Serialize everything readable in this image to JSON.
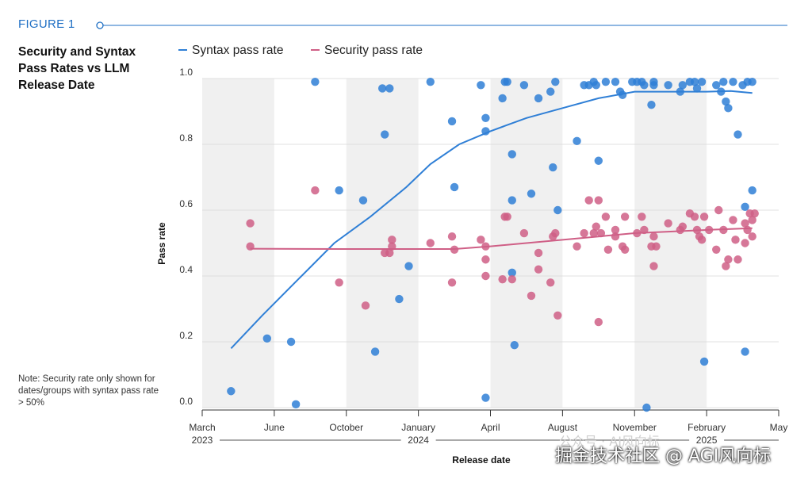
{
  "header": {
    "figure_label": "FIGURE 1"
  },
  "note": "Note: Security rate only shown for dates/groups with syntax pass rate > 50%",
  "watermark": {
    "text": "掘金技术社区 @ AGI风向标",
    "faint_text": "公众号 · AI风向标"
  },
  "colors": {
    "syntax": "#2f7fd6",
    "security": "#cf5f86",
    "accent": "#1f6fc4"
  },
  "chart_data": {
    "type": "scatter",
    "title": "Security and Syntax Pass Rates vs LLM Release Date",
    "xlabel": "Release date",
    "ylabel": "Pass rate",
    "ylim": [
      0,
      1
    ],
    "xlim": [
      0,
      24
    ],
    "x_unit": "months since March 1, 2023",
    "yticks": [
      "0.0",
      "0.2",
      "0.4",
      "0.6",
      "0.8",
      "1.0"
    ],
    "xticks": [
      {
        "x": 0,
        "label": "March",
        "year": "2023"
      },
      {
        "x": 3,
        "label": "June",
        "year": ""
      },
      {
        "x": 6,
        "label": "October",
        "year": ""
      },
      {
        "x": 9,
        "label": "January",
        "year": "2024"
      },
      {
        "x": 12,
        "label": "April",
        "year": ""
      },
      {
        "x": 15,
        "label": "August",
        "year": ""
      },
      {
        "x": 18,
        "label": "November",
        "year": ""
      },
      {
        "x": 21,
        "label": "February",
        "year": "2025"
      },
      {
        "x": 24,
        "label": "May",
        "year": ""
      }
    ],
    "shaded_bands": [
      [
        0,
        3
      ],
      [
        6,
        9
      ],
      [
        12,
        15
      ],
      [
        18,
        21
      ]
    ],
    "series": [
      {
        "name": "Syntax pass rate",
        "color": "#2f7fd6",
        "points": [
          [
            1.2,
            0.05
          ],
          [
            2.7,
            0.21
          ],
          [
            3.7,
            0.2
          ],
          [
            3.9,
            0.01
          ],
          [
            4.7,
            0.99
          ],
          [
            5.7,
            0.66
          ],
          [
            6.7,
            0.63
          ],
          [
            7.2,
            0.17
          ],
          [
            7.5,
            0.97
          ],
          [
            7.8,
            0.97
          ],
          [
            7.6,
            0.83
          ],
          [
            8.2,
            0.33
          ],
          [
            8.6,
            0.43
          ],
          [
            9.5,
            0.99
          ],
          [
            10.4,
            0.87
          ],
          [
            10.5,
            0.67
          ],
          [
            11.6,
            0.98
          ],
          [
            11.8,
            0.88
          ],
          [
            11.8,
            0.84
          ],
          [
            11.8,
            0.03
          ],
          [
            12.5,
            0.94
          ],
          [
            12.6,
            0.99
          ],
          [
            12.7,
            0.99
          ],
          [
            12.9,
            0.77
          ],
          [
            12.9,
            0.63
          ],
          [
            12.9,
            0.41
          ],
          [
            13.0,
            0.19
          ],
          [
            13.4,
            0.98
          ],
          [
            13.7,
            0.65
          ],
          [
            14.0,
            0.94
          ],
          [
            14.5,
            0.96
          ],
          [
            14.6,
            0.73
          ],
          [
            14.7,
            0.99
          ],
          [
            14.8,
            0.6
          ],
          [
            15.6,
            0.81
          ],
          [
            15.9,
            0.98
          ],
          [
            16.1,
            0.98
          ],
          [
            16.3,
            0.99
          ],
          [
            16.4,
            0.98
          ],
          [
            16.5,
            0.75
          ],
          [
            16.8,
            0.99
          ],
          [
            17.2,
            0.99
          ],
          [
            17.4,
            0.96
          ],
          [
            17.5,
            0.95
          ],
          [
            17.9,
            0.99
          ],
          [
            18.1,
            0.99
          ],
          [
            18.3,
            0.99
          ],
          [
            18.4,
            0.98
          ],
          [
            18.5,
            0.0
          ],
          [
            18.7,
            0.92
          ],
          [
            18.8,
            0.98
          ],
          [
            18.8,
            0.99
          ],
          [
            19.4,
            0.98
          ],
          [
            19.9,
            0.96
          ],
          [
            20.0,
            0.98
          ],
          [
            20.3,
            0.99
          ],
          [
            20.5,
            0.99
          ],
          [
            20.6,
            0.97
          ],
          [
            20.8,
            0.99
          ],
          [
            20.9,
            0.14
          ],
          [
            21.4,
            0.98
          ],
          [
            21.6,
            0.96
          ],
          [
            21.7,
            0.99
          ],
          [
            21.8,
            0.93
          ],
          [
            21.9,
            0.91
          ],
          [
            22.1,
            0.99
          ],
          [
            22.3,
            0.83
          ],
          [
            22.5,
            0.98
          ],
          [
            22.6,
            0.61
          ],
          [
            22.6,
            0.17
          ],
          [
            22.7,
            0.99
          ],
          [
            22.9,
            0.99
          ],
          [
            22.9,
            0.66
          ]
        ],
        "trend": [
          [
            1.2,
            0.18
          ],
          [
            2.5,
            0.28
          ],
          [
            4,
            0.39
          ],
          [
            5.5,
            0.5
          ],
          [
            7,
            0.58
          ],
          [
            8.5,
            0.67
          ],
          [
            9.5,
            0.74
          ],
          [
            10.7,
            0.8
          ],
          [
            12,
            0.84
          ],
          [
            13.5,
            0.88
          ],
          [
            15,
            0.91
          ],
          [
            16.5,
            0.94
          ],
          [
            18,
            0.96
          ],
          [
            19.5,
            0.96
          ],
          [
            21,
            0.96
          ],
          [
            22,
            0.962
          ],
          [
            22.9,
            0.956
          ]
        ]
      },
      {
        "name": "Security pass rate",
        "color": "#cf5f86",
        "points": [
          [
            2.0,
            0.56
          ],
          [
            2.0,
            0.49
          ],
          [
            4.7,
            0.66
          ],
          [
            5.7,
            0.38
          ],
          [
            6.8,
            0.31
          ],
          [
            7.6,
            0.47
          ],
          [
            7.8,
            0.47
          ],
          [
            7.9,
            0.49
          ],
          [
            7.9,
            0.51
          ],
          [
            9.5,
            0.5
          ],
          [
            10.4,
            0.52
          ],
          [
            10.4,
            0.38
          ],
          [
            10.5,
            0.48
          ],
          [
            11.6,
            0.51
          ],
          [
            11.8,
            0.49
          ],
          [
            11.8,
            0.45
          ],
          [
            11.8,
            0.4
          ],
          [
            12.5,
            0.39
          ],
          [
            12.6,
            0.58
          ],
          [
            12.7,
            0.58
          ],
          [
            12.9,
            0.39
          ],
          [
            13.4,
            0.53
          ],
          [
            13.7,
            0.34
          ],
          [
            14.0,
            0.47
          ],
          [
            14.0,
            0.42
          ],
          [
            14.5,
            0.38
          ],
          [
            14.6,
            0.52
          ],
          [
            14.7,
            0.53
          ],
          [
            14.8,
            0.28
          ],
          [
            15.6,
            0.49
          ],
          [
            15.9,
            0.53
          ],
          [
            16.1,
            0.63
          ],
          [
            16.3,
            0.53
          ],
          [
            16.4,
            0.55
          ],
          [
            16.5,
            0.63
          ],
          [
            16.5,
            0.26
          ],
          [
            16.6,
            0.53
          ],
          [
            16.8,
            0.58
          ],
          [
            16.9,
            0.48
          ],
          [
            17.2,
            0.52
          ],
          [
            17.2,
            0.54
          ],
          [
            17.5,
            0.49
          ],
          [
            17.6,
            0.58
          ],
          [
            17.6,
            0.48
          ],
          [
            18.1,
            0.53
          ],
          [
            18.3,
            0.58
          ],
          [
            18.4,
            0.54
          ],
          [
            18.7,
            0.49
          ],
          [
            18.8,
            0.52
          ],
          [
            18.8,
            0.43
          ],
          [
            18.9,
            0.49
          ],
          [
            19.4,
            0.56
          ],
          [
            19.9,
            0.54
          ],
          [
            20.0,
            0.55
          ],
          [
            20.3,
            0.59
          ],
          [
            20.5,
            0.58
          ],
          [
            20.6,
            0.54
          ],
          [
            20.7,
            0.52
          ],
          [
            20.8,
            0.51
          ],
          [
            20.9,
            0.58
          ],
          [
            21.1,
            0.54
          ],
          [
            21.4,
            0.48
          ],
          [
            21.5,
            0.6
          ],
          [
            21.7,
            0.54
          ],
          [
            21.8,
            0.43
          ],
          [
            21.9,
            0.45
          ],
          [
            22.1,
            0.57
          ],
          [
            22.2,
            0.51
          ],
          [
            22.3,
            0.45
          ],
          [
            22.6,
            0.5
          ],
          [
            22.6,
            0.56
          ],
          [
            22.7,
            0.54
          ],
          [
            22.8,
            0.59
          ],
          [
            22.9,
            0.57
          ],
          [
            23.0,
            0.59
          ],
          [
            22.9,
            0.52
          ]
        ],
        "trend": [
          [
            2.0,
            0.483
          ],
          [
            6,
            0.482
          ],
          [
            10.5,
            0.482
          ],
          [
            12,
            0.49
          ],
          [
            13.5,
            0.5
          ],
          [
            15,
            0.51
          ],
          [
            16.5,
            0.52
          ],
          [
            18,
            0.53
          ],
          [
            19.5,
            0.535
          ],
          [
            21,
            0.54
          ],
          [
            22.9,
            0.545
          ]
        ]
      }
    ]
  }
}
